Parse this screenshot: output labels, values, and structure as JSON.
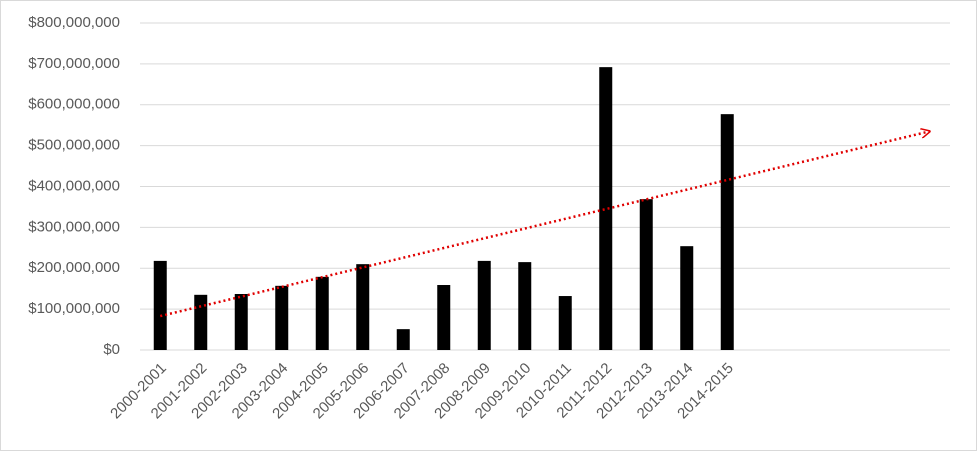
{
  "chart_data": {
    "type": "bar",
    "categories": [
      "2000-2001",
      "2001-2002",
      "2002-2003",
      "2003-2004",
      "2004-2005",
      "2005-2006",
      "2006-2007",
      "2007-2008",
      "2008-2009",
      "2009-2010",
      "2010-2011",
      "2011-2012",
      "2012-2013",
      "2013-2014",
      "2014-2015",
      null,
      null,
      null,
      null,
      null
    ],
    "values": [
      218000000,
      135000000,
      137000000,
      157000000,
      179000000,
      210000000,
      51000000,
      159000000,
      218000000,
      215000000,
      132000000,
      692000000,
      369000000,
      254000000,
      577000000,
      null,
      null,
      null,
      null,
      null
    ],
    "color": "#000000",
    "ylim": [
      0,
      800000000
    ],
    "yticks": [
      {
        "value": 0,
        "label": "$0"
      },
      {
        "value": 100000000,
        "label": "$100,000,000"
      },
      {
        "value": 200000000,
        "label": "$200,000,000"
      },
      {
        "value": 300000000,
        "label": "$300,000,000"
      },
      {
        "value": 400000000,
        "label": "$400,000,000"
      },
      {
        "value": 500000000,
        "label": "$500,000,000"
      },
      {
        "value": 600000000,
        "label": "$600,000,000"
      },
      {
        "value": 700000000,
        "label": "$700,000,000"
      },
      {
        "value": 800000000,
        "label": "$800,000,000"
      }
    ],
    "grid": true,
    "trendline": {
      "color": "#e00000",
      "start": 83000000,
      "end": 535000000
    }
  }
}
